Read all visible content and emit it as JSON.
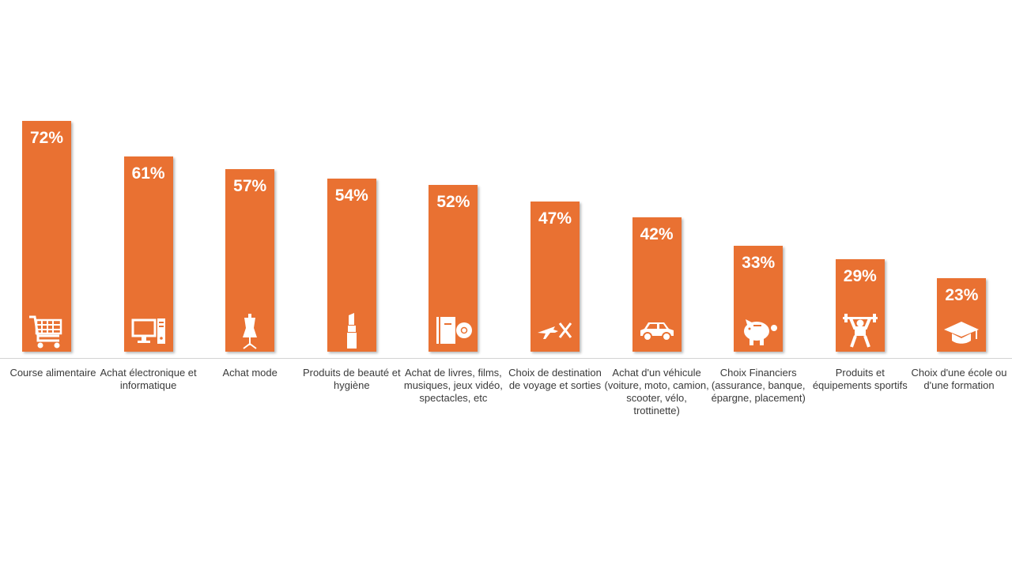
{
  "chart_data": {
    "type": "bar",
    "title": "",
    "ylim": [
      0,
      100
    ],
    "bar_color": "#E97132",
    "value_label_color": "#FFFFFF",
    "axis_color": "#D3D3D3",
    "categories": [
      {
        "label": "Course alimentaire",
        "value": 72,
        "value_label": "72%",
        "icon": "shopping-cart-icon"
      },
      {
        "label": "Achat électronique et informatique",
        "value": 61,
        "value_label": "61%",
        "icon": "desktop-computer-icon"
      },
      {
        "label": "Achat  mode",
        "value": 57,
        "value_label": "57%",
        "icon": "dress-mannequin-icon"
      },
      {
        "label": "Produits de beauté et hygiène",
        "value": 54,
        "value_label": "54%",
        "icon": "lipstick-icon"
      },
      {
        "label": "Achat  de livres, films, musiques, jeux vidéo, spectacles, etc",
        "value": 52,
        "value_label": "52%",
        "icon": "book-disc-icon"
      },
      {
        "label": "Choix de destination de voyage et sorties",
        "value": 47,
        "value_label": "47%",
        "icon": "plane-fork-knife-icon"
      },
      {
        "label": "Achat d'un véhicule (voiture, moto, camion, scooter, vélo, trottinette)",
        "value": 42,
        "value_label": "42%",
        "icon": "car-icon"
      },
      {
        "label": "Choix Financiers (assurance, banque, épargne, placement)",
        "value": 33,
        "value_label": "33%",
        "icon": "piggy-bank-icon"
      },
      {
        "label": "Produits et équipements sportifs",
        "value": 29,
        "value_label": "29%",
        "icon": "weightlifter-icon"
      },
      {
        "label": "Choix d'une école ou d'une formation",
        "value": 23,
        "value_label": "23%",
        "icon": "graduation-cap-icon"
      }
    ]
  }
}
